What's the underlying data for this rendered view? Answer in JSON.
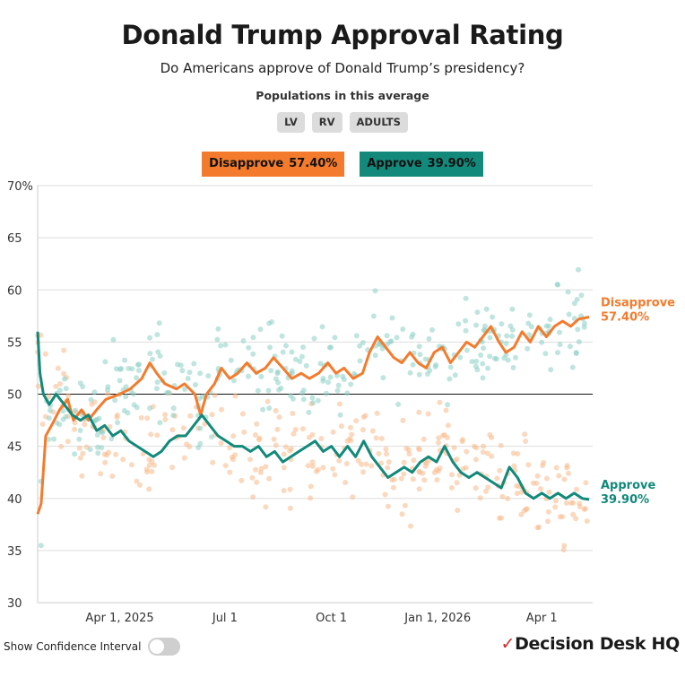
{
  "header": {
    "title": "Donald Trump Approval Rating",
    "subtitle": "Do Americans approve of Donald Trump’s presidency?",
    "populations_label": "Populations in this average",
    "populations": [
      "LV",
      "RV",
      "ADULTS"
    ]
  },
  "legend": {
    "disapprove": {
      "label": "Disapprove",
      "value": "57.40%"
    },
    "approve": {
      "label": "Approve",
      "value": "39.90%"
    }
  },
  "colors": {
    "disapprove": "#f47b2d",
    "approve": "#12897a",
    "disapprove_dots": "#f7b98a",
    "approve_dots": "#8ccfc4"
  },
  "controls": {
    "confidence_label": "Show Confidence Interval",
    "confidence_on": false
  },
  "brand": {
    "logo_text": "Decision Desk HQ"
  },
  "chart_data": {
    "type": "line",
    "title": "Donald Trump Approval Rating",
    "ylim": [
      30,
      70
    ],
    "yticks": [
      {
        "value": 70,
        "label": "70%"
      },
      {
        "value": 65,
        "label": "65"
      },
      {
        "value": 60,
        "label": "60"
      },
      {
        "value": 55,
        "label": "55"
      },
      {
        "value": 50,
        "label": "50"
      },
      {
        "value": 45,
        "label": "45"
      },
      {
        "value": 40,
        "label": "40"
      },
      {
        "value": 35,
        "label": "35"
      },
      {
        "value": 30,
        "label": "30"
      }
    ],
    "xlim": [
      "2025-01-20",
      "2026-05-15"
    ],
    "xticks": [
      {
        "date": "2025-04-01",
        "label": "Apr 1, 2025"
      },
      {
        "date": "2025-07-01",
        "label": "Jul 1"
      },
      {
        "date": "2025-10-01",
        "label": "Oct 1"
      },
      {
        "date": "2026-01-01",
        "label": "Jan 1, 2026"
      },
      {
        "date": "2026-04-01",
        "label": "Apr 1"
      }
    ],
    "reference_line": 50,
    "grid": true,
    "end_labels": [
      {
        "series": "Disapprove",
        "text": "Disapprove",
        "value_text": "57.40%"
      },
      {
        "series": "Approve",
        "text": "Approve",
        "value_text": "39.90%"
      }
    ],
    "series": [
      {
        "name": "Disapprove",
        "points": [
          [
            "2025-01-20",
            38.5
          ],
          [
            "2025-01-23",
            39.5
          ],
          [
            "2025-01-27",
            46.0
          ],
          [
            "2025-02-01",
            47.0
          ],
          [
            "2025-02-08",
            48.5
          ],
          [
            "2025-02-15",
            49.5
          ],
          [
            "2025-02-20",
            47.5
          ],
          [
            "2025-02-27",
            48.5
          ],
          [
            "2025-03-05",
            47.5
          ],
          [
            "2025-03-12",
            48.5
          ],
          [
            "2025-03-20",
            49.5
          ],
          [
            "2025-04-01",
            50.0
          ],
          [
            "2025-04-10",
            50.5
          ],
          [
            "2025-04-20",
            51.5
          ],
          [
            "2025-04-27",
            53.0
          ],
          [
            "2025-05-03",
            52.0
          ],
          [
            "2025-05-10",
            51.0
          ],
          [
            "2025-05-20",
            50.5
          ],
          [
            "2025-05-27",
            51.0
          ],
          [
            "2025-06-05",
            50.0
          ],
          [
            "2025-06-10",
            48.0
          ],
          [
            "2025-06-15",
            50.0
          ],
          [
            "2025-06-22",
            51.0
          ],
          [
            "2025-06-28",
            52.5
          ],
          [
            "2025-07-05",
            51.5
          ],
          [
            "2025-07-12",
            52.0
          ],
          [
            "2025-07-20",
            53.0
          ],
          [
            "2025-07-28",
            52.0
          ],
          [
            "2025-08-05",
            52.5
          ],
          [
            "2025-08-12",
            53.5
          ],
          [
            "2025-08-20",
            52.5
          ],
          [
            "2025-08-28",
            51.5
          ],
          [
            "2025-09-05",
            52.0
          ],
          [
            "2025-09-12",
            51.5
          ],
          [
            "2025-09-20",
            52.0
          ],
          [
            "2025-09-28",
            53.0
          ],
          [
            "2025-10-05",
            52.0
          ],
          [
            "2025-10-12",
            52.5
          ],
          [
            "2025-10-20",
            51.5
          ],
          [
            "2025-10-28",
            52.0
          ],
          [
            "2025-11-03",
            54.0
          ],
          [
            "2025-11-10",
            55.5
          ],
          [
            "2025-11-17",
            54.5
          ],
          [
            "2025-11-24",
            53.5
          ],
          [
            "2025-12-01",
            53.0
          ],
          [
            "2025-12-08",
            54.0
          ],
          [
            "2025-12-15",
            53.0
          ],
          [
            "2025-12-22",
            52.5
          ],
          [
            "2025-12-29",
            54.0
          ],
          [
            "2026-01-05",
            54.5
          ],
          [
            "2026-01-12",
            53.0
          ],
          [
            "2026-01-19",
            54.0
          ],
          [
            "2026-01-26",
            55.0
          ],
          [
            "2026-02-02",
            54.5
          ],
          [
            "2026-02-09",
            55.5
          ],
          [
            "2026-02-16",
            56.5
          ],
          [
            "2026-02-23",
            55.0
          ],
          [
            "2026-03-01",
            54.0
          ],
          [
            "2026-03-08",
            54.5
          ],
          [
            "2026-03-15",
            56.0
          ],
          [
            "2026-03-22",
            55.0
          ],
          [
            "2026-03-29",
            56.5
          ],
          [
            "2026-04-05",
            55.5
          ],
          [
            "2026-04-12",
            56.5
          ],
          [
            "2026-04-19",
            57.0
          ],
          [
            "2026-04-26",
            56.5
          ],
          [
            "2026-05-03",
            57.2
          ],
          [
            "2026-05-12",
            57.4
          ]
        ]
      },
      {
        "name": "Approve",
        "points": [
          [
            "2025-01-20",
            56.0
          ],
          [
            "2025-01-22",
            52.0
          ],
          [
            "2025-01-25",
            50.0
          ],
          [
            "2025-01-30",
            49.0
          ],
          [
            "2025-02-05",
            50.0
          ],
          [
            "2025-02-12",
            49.0
          ],
          [
            "2025-02-19",
            48.0
          ],
          [
            "2025-02-26",
            47.5
          ],
          [
            "2025-03-05",
            48.0
          ],
          [
            "2025-03-12",
            46.5
          ],
          [
            "2025-03-19",
            47.0
          ],
          [
            "2025-03-26",
            46.0
          ],
          [
            "2025-04-02",
            46.5
          ],
          [
            "2025-04-09",
            45.5
          ],
          [
            "2025-04-16",
            45.0
          ],
          [
            "2025-04-23",
            44.5
          ],
          [
            "2025-04-30",
            44.0
          ],
          [
            "2025-05-07",
            44.5
          ],
          [
            "2025-05-14",
            45.5
          ],
          [
            "2025-05-21",
            46.0
          ],
          [
            "2025-05-28",
            46.0
          ],
          [
            "2025-06-04",
            47.0
          ],
          [
            "2025-06-11",
            48.0
          ],
          [
            "2025-06-18",
            47.0
          ],
          [
            "2025-06-25",
            46.0
          ],
          [
            "2025-07-02",
            45.5
          ],
          [
            "2025-07-09",
            45.0
          ],
          [
            "2025-07-16",
            45.0
          ],
          [
            "2025-07-23",
            44.5
          ],
          [
            "2025-07-30",
            45.0
          ],
          [
            "2025-08-06",
            44.0
          ],
          [
            "2025-08-13",
            44.5
          ],
          [
            "2025-08-20",
            43.5
          ],
          [
            "2025-08-27",
            44.0
          ],
          [
            "2025-09-03",
            44.5
          ],
          [
            "2025-09-10",
            45.0
          ],
          [
            "2025-09-17",
            45.5
          ],
          [
            "2025-09-24",
            44.5
          ],
          [
            "2025-10-01",
            45.0
          ],
          [
            "2025-10-08",
            44.0
          ],
          [
            "2025-10-15",
            45.0
          ],
          [
            "2025-10-22",
            44.0
          ],
          [
            "2025-10-29",
            45.5
          ],
          [
            "2025-11-05",
            44.0
          ],
          [
            "2025-11-12",
            43.0
          ],
          [
            "2025-11-19",
            42.0
          ],
          [
            "2025-11-26",
            42.5
          ],
          [
            "2025-12-03",
            43.0
          ],
          [
            "2025-12-10",
            42.5
          ],
          [
            "2025-12-17",
            43.5
          ],
          [
            "2025-12-24",
            44.0
          ],
          [
            "2025-12-31",
            43.5
          ],
          [
            "2026-01-07",
            45.0
          ],
          [
            "2026-01-14",
            43.5
          ],
          [
            "2026-01-21",
            42.5
          ],
          [
            "2026-01-28",
            42.0
          ],
          [
            "2026-02-04",
            42.5
          ],
          [
            "2026-02-11",
            42.0
          ],
          [
            "2026-02-18",
            41.5
          ],
          [
            "2026-02-25",
            41.0
          ],
          [
            "2026-03-04",
            43.0
          ],
          [
            "2026-03-11",
            42.0
          ],
          [
            "2026-03-18",
            40.5
          ],
          [
            "2026-03-25",
            40.0
          ],
          [
            "2026-04-01",
            40.5
          ],
          [
            "2026-04-08",
            40.0
          ],
          [
            "2026-04-15",
            40.5
          ],
          [
            "2026-04-22",
            40.0
          ],
          [
            "2026-04-29",
            40.5
          ],
          [
            "2026-05-06",
            40.0
          ],
          [
            "2026-05-12",
            39.9
          ]
        ]
      }
    ]
  }
}
